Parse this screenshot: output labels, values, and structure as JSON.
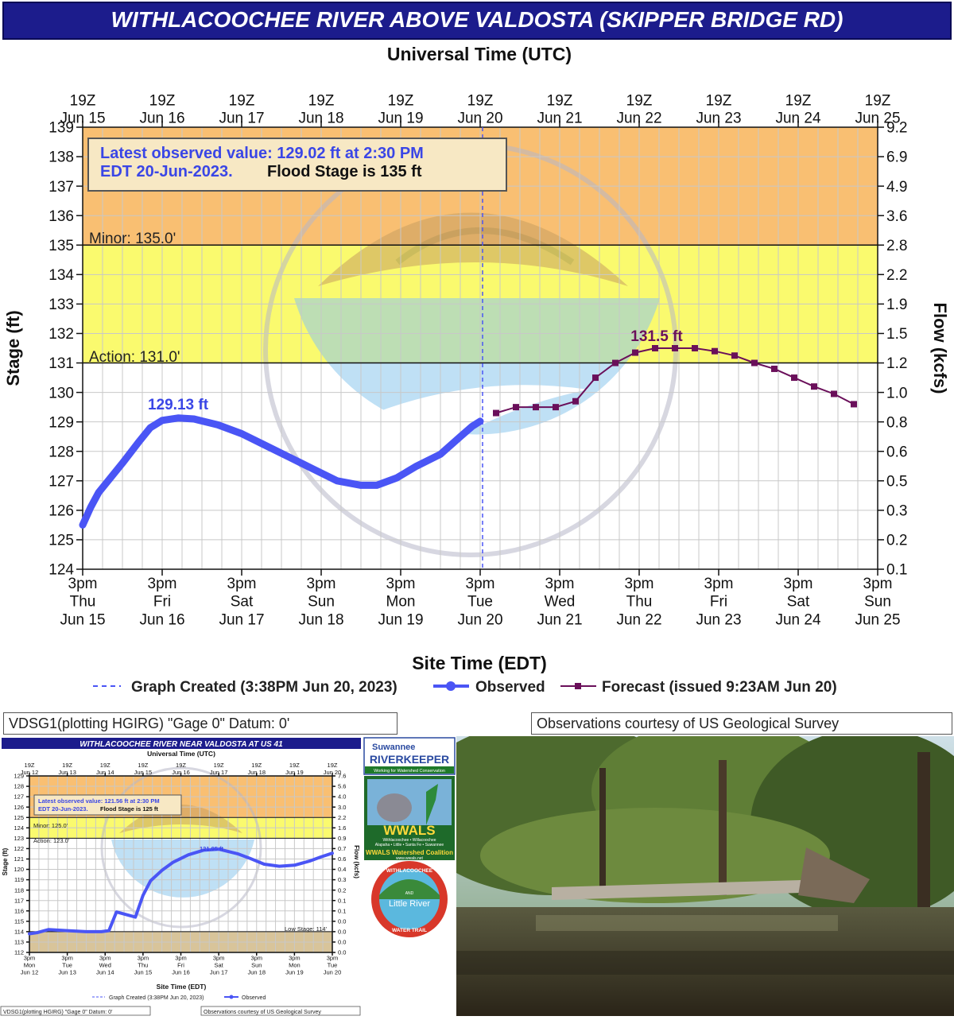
{
  "main_chart": {
    "title": "WITHLACOOCHEE RIVER ABOVE VALDOSTA (SKIPPER BRIDGE RD)",
    "top_axis_title": "Universal Time (UTC)",
    "bottom_axis_title": "Site Time (EDT)",
    "left_axis_title": "Stage (ft)",
    "right_axis_title": "Flow (kcfs)",
    "info_line1": "Latest observed value: 129.02 ft at 2:30 PM",
    "info_line2a": "EDT 20-Jun-2023.",
    "info_line2b": "Flood Stage is 135 ft",
    "minor_label": "Minor: 135.0'",
    "action_label": "Action: 131.0'",
    "peak_obs_label": "129.13 ft",
    "peak_fc_label": "131.5 ft",
    "legend_created": "Graph Created (3:38PM Jun 20, 2023)",
    "legend_observed": "Observed",
    "legend_forecast": "Forecast (issued 9:23AM Jun 20)",
    "footer_left": "VDSG1(plotting HGIRG) \"Gage 0\" Datum: 0'",
    "footer_right": "Observations courtesy of US Geological Survey",
    "colors": {
      "observed": "#4a55f5",
      "forecast": "#6a0f5a",
      "action_zone": "#fafa6e",
      "minor_zone": "#f9bf72",
      "title_bg": "#1c1c8c"
    }
  },
  "sub_chart": {
    "title": "WITHLACOOCHEE RIVER NEAR VALDOSTA AT US 41",
    "top_axis_title": "Universal Time (UTC)",
    "bottom_axis_title": "Site Time (EDT)",
    "left_axis_title": "Stage (ft)",
    "right_axis_title": "Flow (kcfs)",
    "info_line1": "Latest observed value: 121.56 ft at 2:30 PM",
    "info_line2a": "EDT 20-Jun-2023.",
    "info_line2b": "Flood Stage is 125 ft",
    "minor_label": "Minor: 125.0'",
    "action_label": "Action: 123.0'",
    "low_label": "Low Stage: 114'",
    "peak_label": "121.95 ft",
    "legend_created": "Graph Created (3:38PM Jun 20, 2023)",
    "legend_observed": "Observed",
    "footer_left": "VDSG1(plotting HGIRG) \"Gage 0\" Datum: 0'",
    "footer_right": "Observations courtesy of US Geological Survey"
  },
  "logos": {
    "riverkeeper_1": "Suwannee",
    "riverkeeper_2": "RIVERKEEPER",
    "riverkeeper_3": "Working for Watershed Conservation",
    "wwals": "WWALS",
    "wwals_rivers_1": "Withlacoochee • Willacoochee",
    "wwals_rivers_2": "Alapaha • Little • Santa Fe • Suwannee",
    "wwals_coalition": "WWALS Watershed Coalition",
    "wwals_url": "www.wwals.net",
    "trail_top": "WITHLACOOCHEE",
    "trail_and": "AND",
    "trail_little": "Little River",
    "trail_bottom": "WATER TRAIL"
  },
  "chart_data": [
    {
      "type": "line",
      "title": "WITHLACOOCHEE RIVER ABOVE VALDOSTA (SKIPPER BRIDGE RD)",
      "xlabel": "Site Time (EDT)",
      "ylabel": "Stage (ft)",
      "y2label": "Flow (kcfs)",
      "ylim": [
        124,
        139
      ],
      "yticks": [
        124,
        125,
        126,
        127,
        128,
        129,
        130,
        131,
        132,
        133,
        134,
        135,
        136,
        137,
        138,
        139
      ],
      "y2ticks": [
        "0.1",
        "0.2",
        "0.3",
        "0.5",
        "0.6",
        "0.8",
        "1.0",
        "1.2",
        "1.5",
        "1.9",
        "2.2",
        "2.8",
        "3.6",
        "4.9",
        "6.9",
        "9.2"
      ],
      "x_ticks_bottom": [
        {
          "l1": "3pm",
          "l2": "Thu",
          "l3": "Jun 15"
        },
        {
          "l1": "3pm",
          "l2": "Fri",
          "l3": "Jun 16"
        },
        {
          "l1": "3pm",
          "l2": "Sat",
          "l3": "Jun 17"
        },
        {
          "l1": "3pm",
          "l2": "Sun",
          "l3": "Jun 18"
        },
        {
          "l1": "3pm",
          "l2": "Mon",
          "l3": "Jun 19"
        },
        {
          "l1": "3pm",
          "l2": "Tue",
          "l3": "Jun 20"
        },
        {
          "l1": "3pm",
          "l2": "Wed",
          "l3": "Jun 21"
        },
        {
          "l1": "3pm",
          "l2": "Thu",
          "l3": "Jun 22"
        },
        {
          "l1": "3pm",
          "l2": "Fri",
          "l3": "Jun 23"
        },
        {
          "l1": "3pm",
          "l2": "Sat",
          "l3": "Jun 24"
        },
        {
          "l1": "3pm",
          "l2": "Sun",
          "l3": "Jun 25"
        }
      ],
      "x_ticks_top": [
        {
          "l1": "19Z",
          "l2": "Jun 15"
        },
        {
          "l1": "19Z",
          "l2": "Jun 16"
        },
        {
          "l1": "19Z",
          "l2": "Jun 17"
        },
        {
          "l1": "19Z",
          "l2": "Jun 18"
        },
        {
          "l1": "19Z",
          "l2": "Jun 19"
        },
        {
          "l1": "19Z",
          "l2": "Jun 20"
        },
        {
          "l1": "19Z",
          "l2": "Jun 21"
        },
        {
          "l1": "19Z",
          "l2": "Jun 22"
        },
        {
          "l1": "19Z",
          "l2": "Jun 23"
        },
        {
          "l1": "19Z",
          "l2": "Jun 24"
        },
        {
          "l1": "19Z",
          "l2": "Jun 25"
        }
      ],
      "thresholds": {
        "action": 131,
        "minor": 135
      },
      "graph_created_day": 5.03,
      "series": [
        {
          "name": "Observed",
          "x_days": [
            0,
            0.1,
            0.2,
            0.35,
            0.5,
            0.7,
            0.85,
            1.0,
            1.2,
            1.4,
            1.7,
            2.0,
            2.3,
            2.6,
            2.9,
            3.2,
            3.5,
            3.7,
            3.95,
            4.2,
            4.5,
            4.75,
            4.9,
            5.0
          ],
          "y": [
            125.5,
            126.1,
            126.6,
            127.1,
            127.6,
            128.3,
            128.8,
            129.05,
            129.13,
            129.1,
            128.9,
            128.6,
            128.2,
            127.8,
            127.4,
            127.0,
            126.85,
            126.85,
            127.1,
            127.5,
            127.9,
            128.5,
            128.85,
            129.02
          ]
        },
        {
          "name": "Forecast (issued 9:23AM Jun 20)",
          "x_days": [
            5.2,
            5.45,
            5.7,
            5.95,
            6.2,
            6.45,
            6.7,
            6.95,
            7.2,
            7.45,
            7.7,
            7.95,
            8.2,
            8.45,
            8.7,
            8.95,
            9.2,
            9.45,
            9.7
          ],
          "y": [
            129.3,
            129.5,
            129.5,
            129.5,
            129.7,
            130.5,
            131.0,
            131.35,
            131.5,
            131.5,
            131.5,
            131.4,
            131.25,
            131.0,
            130.8,
            130.5,
            130.2,
            129.95,
            129.6
          ]
        }
      ]
    },
    {
      "type": "line",
      "title": "WITHLACOOCHEE RIVER NEAR VALDOSTA AT US 41",
      "xlabel": "Site Time (EDT)",
      "ylabel": "Stage (ft)",
      "y2label": "Flow (kcfs)",
      "ylim": [
        112,
        129
      ],
      "yticks": [
        112,
        113,
        114,
        115,
        116,
        117,
        118,
        119,
        120,
        121,
        122,
        123,
        124,
        125,
        126,
        127,
        128,
        129
      ],
      "y2ticks": [
        "0.0",
        "0.0",
        "0.0",
        "0.0",
        "0.1",
        "0.1",
        "0.2",
        "0.3",
        "0.4",
        "0.6",
        "0.7",
        "0.9",
        "1.6",
        "2.2",
        "3.0",
        "4.0",
        "5.6",
        "7.6"
      ],
      "x_ticks_bottom": [
        {
          "l1": "3pm",
          "l2": "Mon",
          "l3": "Jun 12"
        },
        {
          "l1": "3pm",
          "l2": "Tue",
          "l3": "Jun 13"
        },
        {
          "l1": "3pm",
          "l2": "Wed",
          "l3": "Jun 14"
        },
        {
          "l1": "3pm",
          "l2": "Thu",
          "l3": "Jun 15"
        },
        {
          "l1": "3pm",
          "l2": "Fri",
          "l3": "Jun 16"
        },
        {
          "l1": "3pm",
          "l2": "Sat",
          "l3": "Jun 17"
        },
        {
          "l1": "3pm",
          "l2": "Sun",
          "l3": "Jun 18"
        },
        {
          "l1": "3pm",
          "l2": "Mon",
          "l3": "Jun 19"
        },
        {
          "l1": "3pm",
          "l2": "Tue",
          "l3": "Jun 20"
        }
      ],
      "x_ticks_top": [
        {
          "l1": "19Z",
          "l2": "Jun 12"
        },
        {
          "l1": "19Z",
          "l2": "Jun 13"
        },
        {
          "l1": "19Z",
          "l2": "Jun 14"
        },
        {
          "l1": "19Z",
          "l2": "Jun 15"
        },
        {
          "l1": "19Z",
          "l2": "Jun 16"
        },
        {
          "l1": "19Z",
          "l2": "Jun 17"
        },
        {
          "l1": "19Z",
          "l2": "Jun 18"
        },
        {
          "l1": "19Z",
          "l2": "Jun 19"
        },
        {
          "l1": "19Z",
          "l2": "Jun 20"
        }
      ],
      "thresholds": {
        "low": 114,
        "action": 123,
        "minor": 125
      },
      "series": [
        {
          "name": "Observed",
          "x_days": [
            0,
            0.2,
            0.5,
            1.0,
            1.5,
            1.9,
            2.1,
            2.3,
            2.5,
            2.8,
            3.0,
            3.2,
            3.5,
            3.8,
            4.2,
            4.6,
            5.0,
            5.5,
            5.8,
            6.2,
            6.6,
            7.0,
            7.4,
            7.7,
            8.0
          ],
          "y": [
            113.8,
            113.9,
            114.2,
            114.1,
            114.0,
            114.0,
            114.1,
            115.9,
            115.7,
            115.4,
            117.5,
            118.9,
            119.9,
            120.7,
            121.4,
            121.85,
            121.95,
            121.5,
            121.1,
            120.5,
            120.3,
            120.4,
            120.8,
            121.2,
            121.56
          ]
        }
      ]
    }
  ]
}
